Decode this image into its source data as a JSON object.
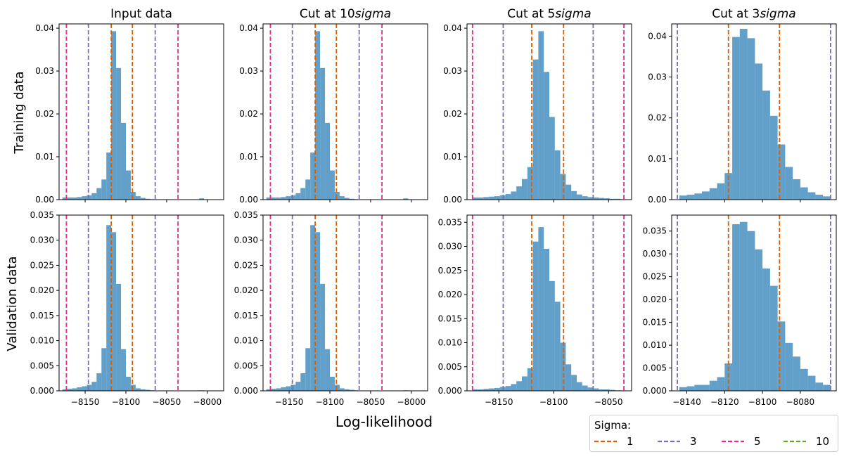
{
  "figure": {
    "xlabel": "Log-likelihood",
    "row_labels": [
      "Training data",
      "Validation data"
    ],
    "legend": {
      "title": "Sigma:",
      "placement": "bottom-right",
      "entries": [
        {
          "label": "1",
          "color": "#d95f02"
        },
        {
          "label": "3",
          "color": "#7570b3"
        },
        {
          "label": "5",
          "color": "#e7298a"
        },
        {
          "label": "10",
          "color": "#66a61e"
        }
      ]
    }
  },
  "colors": {
    "bars": "#1f77b4",
    "sigma1": "#d95f02",
    "sigma3": "#7570b3",
    "sigma5": "#e7298a",
    "sigma10": "#66a61e"
  },
  "chart_data": [
    {
      "type": "bar",
      "title": "Input data",
      "row": "Training data",
      "xlim": [
        -8182,
        -7980
      ],
      "ylim": [
        0,
        0.041
      ],
      "xticks": [],
      "yticks": [
        0.0,
        0.01,
        0.02,
        0.03,
        0.04
      ],
      "ytick_labels": [
        "0.00",
        "0.01",
        "0.02",
        "0.03",
        "0.04"
      ],
      "bin_edges": [
        -8178,
        -8172,
        -8166,
        -8160,
        -8154,
        -8148,
        -8142,
        -8136,
        -8130,
        -8124,
        -8118,
        -8112,
        -8106,
        -8100,
        -8094,
        -8088,
        -8082,
        -8076,
        -8070,
        -8064,
        -8058,
        -8052,
        -8046,
        -8040,
        -8034,
        -8028,
        -8022,
        -8016,
        -8010,
        -8004,
        -7998
      ],
      "values": [
        0.0005,
        0.0005,
        0.0005,
        0.0006,
        0.0008,
        0.001,
        0.0015,
        0.0027,
        0.0047,
        0.011,
        0.0393,
        0.0307,
        0.0179,
        0.0068,
        0.0018,
        0.0008,
        0.0004,
        0.0002,
        0.0001,
        0,
        0,
        0,
        0,
        0,
        0,
        0,
        0,
        0,
        0.0003,
        0
      ],
      "vlines": [
        {
          "sigma": "1",
          "x": [
            -8118,
            -8092
          ]
        },
        {
          "sigma": "3",
          "x": [
            -8146,
            -8064
          ]
        },
        {
          "sigma": "5",
          "x": [
            -8173,
            -8036
          ]
        }
      ]
    },
    {
      "type": "bar",
      "title": "Cut at 10$sigma$",
      "row": "Training data",
      "xlim": [
        -8182,
        -7980
      ],
      "ylim": [
        0,
        0.041
      ],
      "xticks": [],
      "yticks": [
        0.0,
        0.01,
        0.02,
        0.03,
        0.04
      ],
      "ytick_labels": [
        "0.00",
        "0.01",
        "0.02",
        "0.03",
        "0.04"
      ],
      "bin_edges": [
        -8178,
        -8172,
        -8166,
        -8160,
        -8154,
        -8148,
        -8142,
        -8136,
        -8130,
        -8124,
        -8118,
        -8112,
        -8106,
        -8100,
        -8094,
        -8088,
        -8082,
        -8076,
        -8070,
        -8064,
        -8058,
        -8052,
        -8046,
        -8040,
        -8034,
        -8028,
        -8022,
        -8016,
        -8010,
        -8004,
        -7998
      ],
      "values": [
        0.0005,
        0.0005,
        0.0005,
        0.0006,
        0.0008,
        0.001,
        0.0015,
        0.0027,
        0.0047,
        0.011,
        0.0393,
        0.0307,
        0.0179,
        0.0068,
        0.0018,
        0.0008,
        0.0004,
        0.0002,
        0.0001,
        0,
        0,
        0,
        0,
        0,
        0,
        0,
        0,
        0,
        0.0003,
        0
      ],
      "vlines": [
        {
          "sigma": "1",
          "x": [
            -8118,
            -8092
          ]
        },
        {
          "sigma": "3",
          "x": [
            -8146,
            -8064
          ]
        },
        {
          "sigma": "5",
          "x": [
            -8173,
            -8036
          ]
        }
      ]
    },
    {
      "type": "bar",
      "title": "Cut at 5$sigma$",
      "row": "Training data",
      "xlim": [
        -8179,
        -8029
      ],
      "ylim": [
        0,
        0.041
      ],
      "xticks": [],
      "yticks": [
        0.0,
        0.01,
        0.02,
        0.03,
        0.04
      ],
      "ytick_labels": [
        "0.00",
        "0.01",
        "0.02",
        "0.03",
        "0.04"
      ],
      "bin_edges": [
        -8174,
        -8169,
        -8164,
        -8159,
        -8154,
        -8149,
        -8144,
        -8139,
        -8134,
        -8129,
        -8124,
        -8119,
        -8114,
        -8109,
        -8104,
        -8099,
        -8094,
        -8089,
        -8084,
        -8079,
        -8074,
        -8069,
        -8064,
        -8059,
        -8054,
        -8049,
        -8044,
        -8039,
        -8034
      ],
      "values": [
        0.0005,
        0.0005,
        0.0006,
        0.0007,
        0.0008,
        0.001,
        0.0013,
        0.0019,
        0.0031,
        0.0048,
        0.0076,
        0.0327,
        0.0393,
        0.0298,
        0.0193,
        0.0115,
        0.006,
        0.0035,
        0.002,
        0.0012,
        0.0008,
        0.0006,
        0.0005,
        0.0004,
        0.0003,
        0.0002,
        0.0002,
        0.0001
      ],
      "vlines": [
        {
          "sigma": "1",
          "x": [
            -8120,
            -8091
          ]
        },
        {
          "sigma": "3",
          "x": [
            -8146,
            -8064
          ]
        },
        {
          "sigma": "5",
          "x": [
            -8174,
            -8036
          ]
        }
      ]
    },
    {
      "type": "bar",
      "title": "Cut at 3$sigma$",
      "row": "Training data",
      "xlim": [
        -8148,
        -8061
      ],
      "ylim": [
        0,
        0.043
      ],
      "xticks": [],
      "yticks": [
        0.0,
        0.01,
        0.02,
        0.03,
        0.04
      ],
      "ytick_labels": [
        "0.00",
        "0.01",
        "0.02",
        "0.03",
        "0.04"
      ],
      "bin_edges": [
        -8144,
        -8140,
        -8136,
        -8132,
        -8128,
        -8124,
        -8120,
        -8116,
        -8112,
        -8108,
        -8104,
        -8100,
        -8096,
        -8092,
        -8088,
        -8084,
        -8080,
        -8076,
        -8072,
        -8068,
        -8064
      ],
      "values": [
        0.001,
        0.0012,
        0.0015,
        0.002,
        0.0028,
        0.004,
        0.0065,
        0.0398,
        0.0418,
        0.0395,
        0.0333,
        0.0267,
        0.0205,
        0.0135,
        0.008,
        0.005,
        0.003,
        0.0018,
        0.0012,
        0.0008
      ],
      "vlines": [
        {
          "sigma": "1",
          "x": [
            -8118,
            -8091
          ]
        },
        {
          "sigma": "3",
          "x": [
            -8145,
            -8064
          ]
        }
      ]
    },
    {
      "type": "bar",
      "title": "",
      "row": "Validation data",
      "xlim": [
        -8182,
        -7980
      ],
      "ylim": [
        0,
        0.035
      ],
      "xticks": [
        -8150,
        -8100,
        -8050,
        -8000
      ],
      "xtick_labels": [
        "−8150",
        "−8100",
        "−8050",
        "−8000"
      ],
      "yticks": [
        0.0,
        0.005,
        0.01,
        0.015,
        0.02,
        0.025,
        0.03,
        0.035
      ],
      "ytick_labels": [
        "0.000",
        "0.005",
        "0.010",
        "0.015",
        "0.020",
        "0.025",
        "0.030",
        "0.035"
      ],
      "bin_edges": [
        -8178,
        -8172,
        -8166,
        -8160,
        -8154,
        -8148,
        -8142,
        -8136,
        -8130,
        -8124,
        -8118,
        -8112,
        -8106,
        -8100,
        -8094,
        -8088,
        -8082,
        -8076,
        -8070,
        -8064,
        -8058,
        -8052,
        -8046,
        -8040,
        -8034,
        -8028,
        -8022,
        -8016,
        -8010,
        -8004,
        -7998
      ],
      "values": [
        0.0003,
        0.0004,
        0.0005,
        0.0007,
        0.0009,
        0.0012,
        0.0018,
        0.0035,
        0.0085,
        0.033,
        0.0316,
        0.0213,
        0.0083,
        0.0028,
        0.0012,
        0.0005,
        0.0003,
        0.0002,
        0.0001,
        0,
        0,
        0,
        0,
        0,
        0,
        0,
        0,
        0,
        0.0001,
        0
      ],
      "vlines": [
        {
          "sigma": "1",
          "x": [
            -8118,
            -8092
          ]
        },
        {
          "sigma": "3",
          "x": [
            -8146,
            -8064
          ]
        },
        {
          "sigma": "5",
          "x": [
            -8173,
            -8036
          ]
        }
      ]
    },
    {
      "type": "bar",
      "title": "",
      "row": "Validation data",
      "xlim": [
        -8182,
        -7980
      ],
      "ylim": [
        0,
        0.035
      ],
      "xticks": [
        -8150,
        -8100,
        -8050,
        -8000
      ],
      "xtick_labels": [
        "−8150",
        "−8100",
        "−8050",
        "−8000"
      ],
      "yticks": [
        0.0,
        0.005,
        0.01,
        0.015,
        0.02,
        0.025,
        0.03,
        0.035
      ],
      "ytick_labels": [
        "0.000",
        "0.005",
        "0.010",
        "0.015",
        "0.020",
        "0.025",
        "0.030",
        "0.035"
      ],
      "bin_edges": [
        -8178,
        -8172,
        -8166,
        -8160,
        -8154,
        -8148,
        -8142,
        -8136,
        -8130,
        -8124,
        -8118,
        -8112,
        -8106,
        -8100,
        -8094,
        -8088,
        -8082,
        -8076,
        -8070,
        -8064,
        -8058,
        -8052,
        -8046,
        -8040,
        -8034,
        -8028,
        -8022,
        -8016,
        -8010,
        -8004,
        -7998
      ],
      "values": [
        0.0003,
        0.0004,
        0.0005,
        0.0007,
        0.0009,
        0.0012,
        0.0018,
        0.0035,
        0.0085,
        0.033,
        0.0316,
        0.0213,
        0.0083,
        0.0028,
        0.0012,
        0.0005,
        0.0003,
        0.0002,
        0.0001,
        0,
        0,
        0,
        0,
        0,
        0,
        0,
        0,
        0,
        0.0001,
        0
      ],
      "vlines": [
        {
          "sigma": "1",
          "x": [
            -8118,
            -8092
          ]
        },
        {
          "sigma": "3",
          "x": [
            -8146,
            -8064
          ]
        },
        {
          "sigma": "5",
          "x": [
            -8173,
            -8036
          ]
        }
      ]
    },
    {
      "type": "bar",
      "title": "",
      "row": "Validation data",
      "xlim": [
        -8179,
        -8029
      ],
      "ylim": [
        0,
        0.0365
      ],
      "xticks": [
        -8150,
        -8100,
        -8050
      ],
      "xtick_labels": [
        "−8150",
        "−8100",
        "−8050"
      ],
      "yticks": [
        0.0,
        0.005,
        0.01,
        0.015,
        0.02,
        0.025,
        0.03,
        0.035
      ],
      "ytick_labels": [
        "0.000",
        "0.005",
        "0.010",
        "0.015",
        "0.020",
        "0.025",
        "0.030",
        "0.035"
      ],
      "bin_edges": [
        -8174,
        -8169,
        -8164,
        -8159,
        -8154,
        -8149,
        -8144,
        -8139,
        -8134,
        -8129,
        -8124,
        -8119,
        -8114,
        -8109,
        -8104,
        -8099,
        -8094,
        -8089,
        -8084,
        -8079,
        -8074,
        -8069,
        -8064,
        -8059,
        -8054,
        -8049,
        -8044,
        -8039,
        -8034
      ],
      "values": [
        0.0003,
        0.0003,
        0.0004,
        0.0005,
        0.0006,
        0.0008,
        0.001,
        0.0014,
        0.002,
        0.003,
        0.0047,
        0.031,
        0.034,
        0.0295,
        0.0228,
        0.0185,
        0.01,
        0.0055,
        0.0033,
        0.0018,
        0.0011,
        0.0007,
        0.0005,
        0.0003,
        0.0003,
        0.0002,
        0.0001,
        0.0001
      ],
      "vlines": [
        {
          "sigma": "1",
          "x": [
            -8120,
            -8091
          ]
        },
        {
          "sigma": "3",
          "x": [
            -8146,
            -8064
          ]
        },
        {
          "sigma": "5",
          "x": [
            -8174,
            -8036
          ]
        }
      ]
    },
    {
      "type": "bar",
      "title": "",
      "row": "Validation data",
      "xlim": [
        -8148,
        -8061
      ],
      "ylim": [
        0,
        0.0385
      ],
      "xticks": [
        -8140,
        -8120,
        -8100,
        -8080
      ],
      "xtick_labels": [
        "−8140",
        "−8120",
        "−8100",
        "−8080"
      ],
      "yticks": [
        0.0,
        0.005,
        0.01,
        0.015,
        0.02,
        0.025,
        0.03,
        0.035
      ],
      "ytick_labels": [
        "0.000",
        "0.005",
        "0.010",
        "0.015",
        "0.020",
        "0.025",
        "0.030",
        "0.035"
      ],
      "bin_edges": [
        -8144,
        -8140,
        -8136,
        -8132,
        -8128,
        -8124,
        -8120,
        -8116,
        -8112,
        -8108,
        -8104,
        -8100,
        -8096,
        -8092,
        -8088,
        -8084,
        -8080,
        -8076,
        -8072,
        -8068,
        -8064
      ],
      "values": [
        0.0008,
        0.001,
        0.0013,
        0.0013,
        0.0022,
        0.003,
        0.006,
        0.0365,
        0.037,
        0.035,
        0.031,
        0.0268,
        0.023,
        0.0152,
        0.0105,
        0.0075,
        0.0048,
        0.0033,
        0.0018,
        0.0013
      ],
      "vlines": [
        {
          "sigma": "1",
          "x": [
            -8118,
            -8091
          ]
        },
        {
          "sigma": "3",
          "x": [
            -8145,
            -8064
          ]
        }
      ]
    }
  ]
}
